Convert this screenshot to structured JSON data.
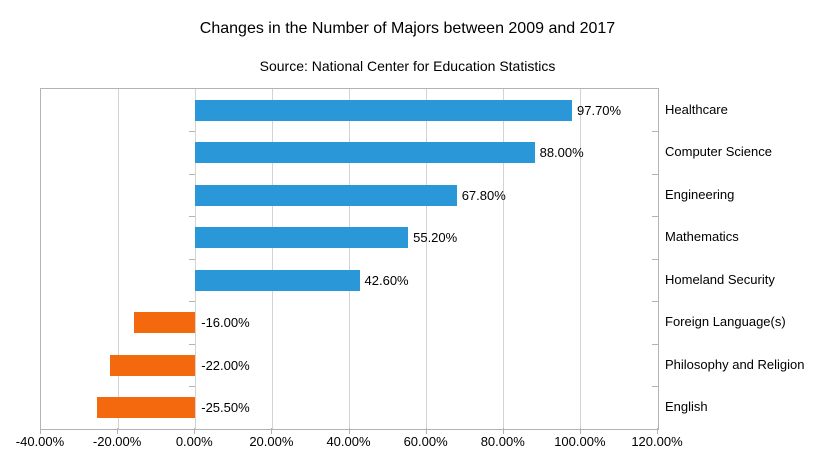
{
  "chart_data": {
    "type": "bar",
    "orientation": "horizontal",
    "title": "Changes in the Number of Majors between 2009 and 2017",
    "subtitle": "Source: National Center for Education Statistics",
    "categories": [
      "Healthcare",
      "Computer Science",
      "Engineering",
      "Mathematics",
      "Homeland Security",
      "Foreign Language(s)",
      "Philosophy and Religion",
      "English"
    ],
    "values": [
      97.7,
      88.0,
      67.8,
      55.2,
      42.6,
      -16.0,
      -22.0,
      -25.5
    ],
    "data_labels": [
      "97.70%",
      "88.00%",
      "67.80%",
      "55.20%",
      "42.60%",
      "-16.00%",
      "-22.00%",
      "-25.50%"
    ],
    "x_tick_labels": [
      "-40.00%",
      "-20.00%",
      "0.00%",
      "20.00%",
      "40.00%",
      "60.00%",
      "80.00%",
      "100.00%",
      "120.00%"
    ],
    "x_tick_values": [
      -40,
      -20,
      0,
      20,
      40,
      60,
      80,
      100,
      120
    ],
    "xlim": [
      -40,
      120
    ],
    "grid": true,
    "legend": "none",
    "colors": {
      "positive_bar": "#2a97d8",
      "negative_bar": "#f4690d",
      "gridline": "#d3d3d3",
      "axis_border": "#b3b3b3",
      "text": "#000000",
      "background": "#ffffff"
    }
  }
}
